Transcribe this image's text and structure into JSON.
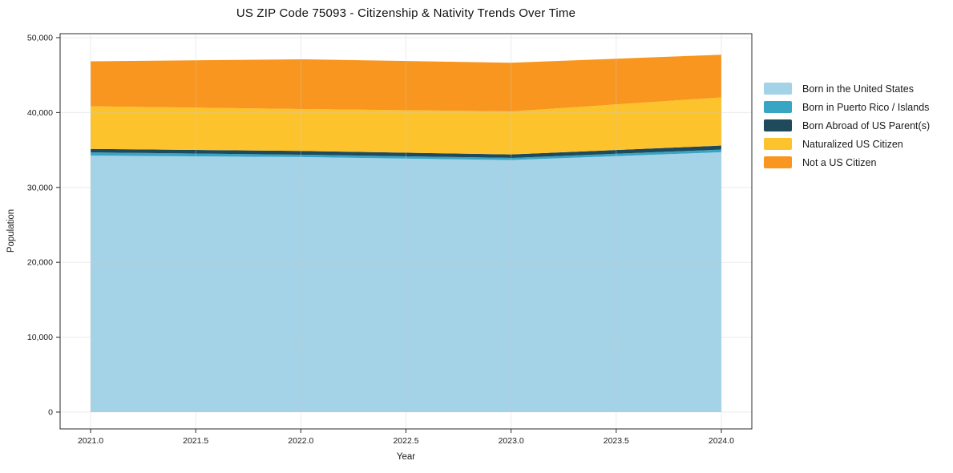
{
  "title": "US ZIP Code 75093 - Citizenship & Nativity Trends Over Time",
  "chart_data": {
    "type": "area",
    "stacked": true,
    "title": "US ZIP Code 75093 - Citizenship & Nativity Trends Over Time",
    "xlabel": "Year",
    "ylabel": "Population",
    "x": [
      2021,
      2022,
      2023,
      2024
    ],
    "series": [
      {
        "name": "Born in the United States",
        "color": "#a4d2e7",
        "values": [
          34250,
          34050,
          33650,
          34700
        ]
      },
      {
        "name": "Born in Puerto Rico / Islands",
        "color": "#39a5c4",
        "values": [
          430,
          320,
          290,
          350
        ]
      },
      {
        "name": "Born Abroad of US Parent(s)",
        "color": "#1f4a5c",
        "values": [
          460,
          500,
          460,
          540
        ]
      },
      {
        "name": "Naturalized US Citizen",
        "color": "#fdc32c",
        "values": [
          5700,
          5600,
          5750,
          6430
        ]
      },
      {
        "name": "Not a US Citizen",
        "color": "#f8961f",
        "values": [
          6000,
          6640,
          6500,
          5700
        ]
      }
    ],
    "stack_totals": [
      46840,
      47110,
      46650,
      47720
    ],
    "xlim": [
      2020.855,
      2024.145
    ],
    "ylim": [
      -2250,
      50530
    ],
    "xticks": [
      {
        "value": 2021.0,
        "label": "2021.0"
      },
      {
        "value": 2021.5,
        "label": "2021.5"
      },
      {
        "value": 2022.0,
        "label": "2022.0"
      },
      {
        "value": 2022.5,
        "label": "2022.5"
      },
      {
        "value": 2023.0,
        "label": "2023.0"
      },
      {
        "value": 2023.5,
        "label": "2023.5"
      },
      {
        "value": 2024.0,
        "label": "2024.0"
      }
    ],
    "yticks": [
      {
        "value": 0,
        "label": "0"
      },
      {
        "value": 10000,
        "label": "10,000"
      },
      {
        "value": 20000,
        "label": "20,000"
      },
      {
        "value": 30000,
        "label": "30,000"
      },
      {
        "value": 40000,
        "label": "40,000"
      },
      {
        "value": 50000,
        "label": "50,000"
      }
    ],
    "grid": true,
    "legend_position": "right-outside",
    "colors": {
      "frame": "#2b2b2b",
      "grid": "#cccccc",
      "tick_text": "#1a1a1a"
    }
  }
}
